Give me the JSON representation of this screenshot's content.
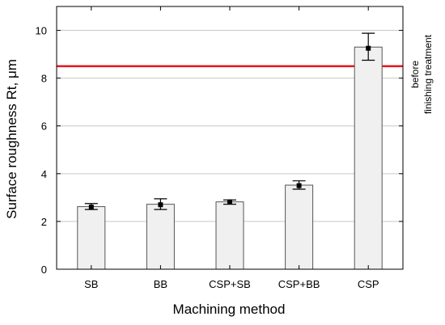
{
  "chart_data": {
    "type": "bar",
    "categories": [
      "SB",
      "BB",
      "CSP+SB",
      "CSP+BB",
      "CSP"
    ],
    "values": [
      2.62,
      2.72,
      2.82,
      3.52,
      9.3
    ],
    "means": [
      2.6,
      2.7,
      2.82,
      3.5,
      9.25
    ],
    "error_low": [
      2.5,
      2.5,
      2.72,
      3.35,
      8.75
    ],
    "error_high": [
      2.75,
      2.95,
      2.9,
      3.7,
      9.88
    ],
    "xlabel": "Machining method",
    "ylabel": "Surface roughness Rt, μm",
    "ylim": [
      0,
      11
    ],
    "yticks": [
      0,
      2,
      4,
      6,
      8,
      10
    ],
    "grid": true,
    "reference_line": {
      "value": 8.5,
      "label_line1": "before",
      "label_line2": "finishing treatment",
      "color": "#e8141c"
    },
    "bar_color": "#f0f0f0",
    "grid_color": "#c8c8c8"
  }
}
